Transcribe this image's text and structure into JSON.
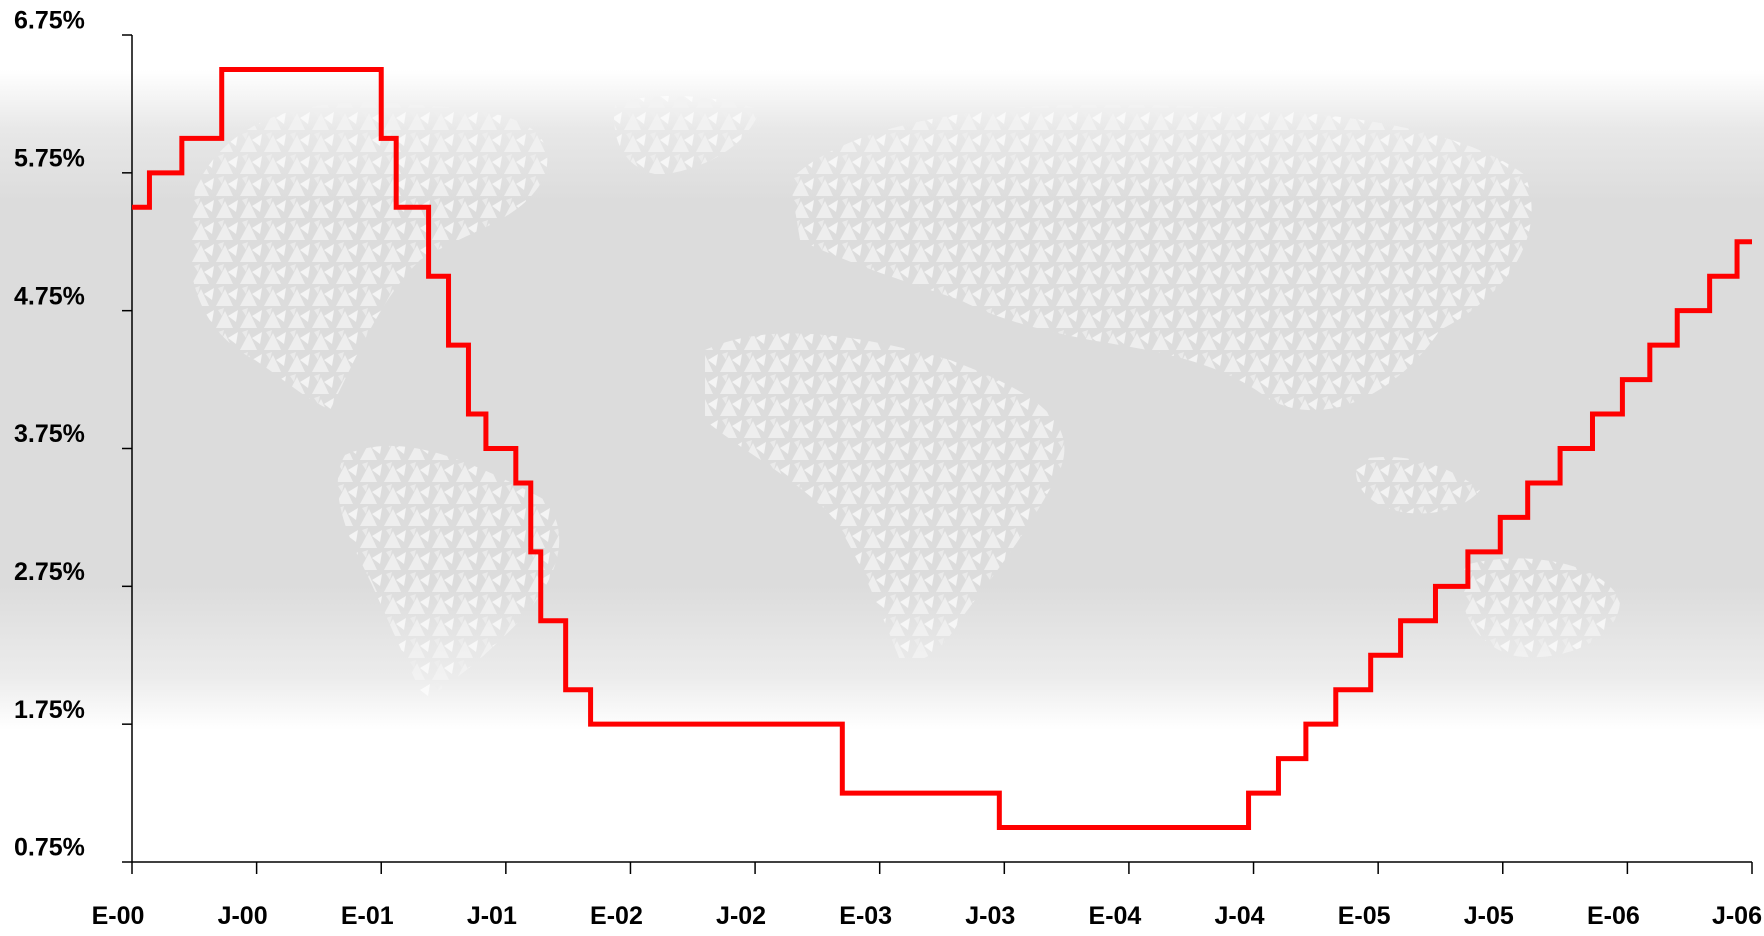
{
  "chart_data": {
    "type": "line",
    "step": true,
    "title": "",
    "xlabel": "",
    "ylabel": "",
    "xlim": [
      0,
      6.5
    ],
    "ylim": [
      0.75,
      6.75
    ],
    "y_ticks": [
      0.75,
      1.75,
      2.75,
      3.75,
      4.75,
      5.75,
      6.75
    ],
    "y_tick_labels": [
      "0.75%",
      "1.75%",
      "2.75%",
      "3.75%",
      "4.75%",
      "5.75%",
      "6.75%"
    ],
    "x_tick_positions": [
      0,
      0.5,
      1,
      1.5,
      2,
      2.5,
      3,
      3.5,
      4,
      4.5,
      5,
      5.5,
      6,
      6.5
    ],
    "x_tick_labels": [
      "E-00",
      "J-00",
      "E-01",
      "J-01",
      "E-02",
      "J-02",
      "E-03",
      "J-03",
      "E-04",
      "J-04",
      "E-05",
      "J-05",
      "E-06",
      "J-06"
    ],
    "grid": false,
    "background": "world-map",
    "series": [
      {
        "color": "#ff0000",
        "x": [
          0,
          0.07,
          0.2,
          0.36,
          1.0,
          1.06,
          1.19,
          1.27,
          1.35,
          1.42,
          1.54,
          1.6,
          1.64,
          1.74,
          1.84,
          2.85,
          3.48,
          4.48,
          4.6,
          4.71,
          4.83,
          4.97,
          5.09,
          5.23,
          5.36,
          5.49,
          5.6,
          5.73,
          5.86,
          5.98,
          6.09,
          6.2,
          6.33,
          6.44,
          6.5
        ],
        "y": [
          5.5,
          5.75,
          6.0,
          6.5,
          6.0,
          5.5,
          5.0,
          4.5,
          4.0,
          3.75,
          3.5,
          3.0,
          2.5,
          2.0,
          1.75,
          1.25,
          1.0,
          1.25,
          1.5,
          1.75,
          2.0,
          2.25,
          2.5,
          2.75,
          3.0,
          3.25,
          3.5,
          3.75,
          4.0,
          4.25,
          4.5,
          4.75,
          5.0,
          5.25,
          5.25
        ]
      }
    ]
  }
}
